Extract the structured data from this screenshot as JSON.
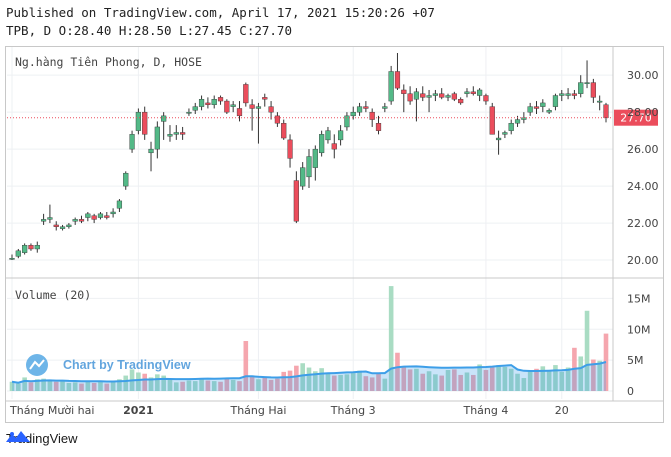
{
  "header": {
    "published": "Published on TradingView.com, April 17, 2021 15:20:26 +07",
    "ohlc": "TPB, D O:28.40 H:28.50 L:27.45 C:27.70"
  },
  "footer": {
    "brand": "TradingView"
  },
  "chart_data": {
    "type": "candlestick",
    "title": "Ng.hàng Tiên Phong, D, HOSE",
    "volume_label": "Volume (20)",
    "watermark": "Chart by TradingView",
    "last_price_label": "27.70",
    "last_price": 27.7,
    "price_ticks": [
      "30.00",
      "28.00",
      "26.00",
      "24.00",
      "22.00",
      "20.00"
    ],
    "price_tick_values": [
      30,
      28,
      26,
      24,
      22,
      20
    ],
    "volume_ticks": [
      "15M",
      "10M",
      "5M",
      "0"
    ],
    "volume_tick_values": [
      15,
      10,
      5,
      0
    ],
    "time_labels": [
      {
        "text": "Tháng Mười hai",
        "index": 0,
        "bold": false
      },
      {
        "text": "2021",
        "index": 20,
        "bold": true
      },
      {
        "text": "Tháng Hai",
        "index": 39,
        "bold": false
      },
      {
        "text": "Tháng 3",
        "index": 54,
        "bold": false
      },
      {
        "text": "Tháng 4",
        "index": 75,
        "bold": false
      },
      {
        "text": "20",
        "index": 87,
        "bold": false
      }
    ],
    "colors": {
      "up": "#53b987",
      "down": "#eb4d5c",
      "up_vol": "#a9dcc3",
      "down_vol": "#f5a6ae",
      "vol_ma": "#3d9ee8",
      "last": "#eb4d5c"
    },
    "ylim": [
      19.3,
      31.2
    ],
    "vlim": [
      0,
      17.5
    ],
    "candles": [
      [
        20.1,
        20.3,
        20.0,
        20.1,
        1.5
      ],
      [
        20.2,
        20.6,
        20.1,
        20.5,
        1.2
      ],
      [
        20.4,
        20.9,
        20.3,
        20.8,
        2.2
      ],
      [
        20.8,
        20.9,
        20.5,
        20.6,
        1.4
      ],
      [
        20.6,
        21.0,
        20.4,
        20.8,
        1.9
      ],
      [
        22.1,
        22.5,
        21.9,
        22.2,
        2.0
      ],
      [
        22.2,
        23.0,
        22.0,
        22.3,
        1.8
      ],
      [
        21.9,
        22.1,
        21.6,
        21.8,
        1.5
      ],
      [
        21.7,
        21.9,
        21.6,
        21.8,
        1.6
      ],
      [
        21.8,
        22.0,
        21.7,
        21.9,
        1.3
      ],
      [
        22.1,
        22.3,
        21.9,
        22.2,
        1.4
      ],
      [
        22.2,
        22.4,
        22.0,
        22.1,
        1.2
      ],
      [
        22.3,
        22.6,
        22.1,
        22.5,
        1.7
      ],
      [
        22.4,
        22.5,
        22.0,
        22.2,
        1.3
      ],
      [
        22.3,
        22.6,
        22.2,
        22.5,
        1.5
      ],
      [
        22.4,
        22.6,
        22.2,
        22.3,
        1.2
      ],
      [
        22.5,
        22.8,
        22.3,
        22.6,
        1.6
      ],
      [
        22.8,
        23.3,
        22.6,
        23.2,
        1.9
      ],
      [
        24.0,
        24.8,
        23.8,
        24.7,
        2.5
      ],
      [
        26.0,
        27.0,
        25.8,
        26.8,
        3.5
      ],
      [
        27.0,
        28.2,
        26.8,
        28.0,
        3.0
      ],
      [
        28.0,
        28.3,
        26.5,
        26.8,
        2.8
      ],
      [
        25.8,
        26.4,
        24.8,
        26.0,
        2.2
      ],
      [
        26.0,
        27.5,
        25.5,
        27.2,
        2.7
      ],
      [
        27.5,
        28.0,
        26.5,
        27.8,
        2.5
      ],
      [
        26.7,
        27.3,
        26.4,
        26.8,
        1.8
      ],
      [
        26.8,
        27.3,
        26.5,
        26.9,
        1.4
      ],
      [
        26.9,
        27.2,
        26.5,
        26.8,
        1.5
      ],
      [
        28.0,
        28.2,
        27.8,
        28.0,
        1.7
      ],
      [
        28.1,
        28.5,
        27.9,
        28.3,
        1.6
      ],
      [
        28.3,
        28.9,
        28.1,
        28.7,
        2.0
      ],
      [
        28.5,
        28.8,
        28.2,
        28.4,
        1.7
      ],
      [
        28.4,
        28.9,
        28.2,
        28.7,
        1.6
      ],
      [
        28.8,
        28.9,
        28.4,
        28.6,
        1.5
      ],
      [
        28.6,
        28.7,
        27.9,
        28.0,
        2.1
      ],
      [
        28.3,
        28.6,
        28.0,
        28.4,
        1.8
      ],
      [
        28.2,
        28.6,
        27.5,
        27.8,
        1.6
      ],
      [
        29.5,
        29.6,
        28.3,
        28.5,
        8.1
      ],
      [
        28.4,
        28.7,
        27.0,
        28.2,
        2.4
      ],
      [
        28.2,
        28.5,
        26.3,
        28.3,
        1.9
      ],
      [
        28.8,
        29.0,
        28.3,
        28.7,
        2.2
      ],
      [
        28.3,
        28.6,
        27.6,
        28.0,
        1.8
      ],
      [
        27.8,
        28.0,
        27.2,
        27.4,
        2.0
      ],
      [
        27.4,
        27.6,
        26.5,
        26.6,
        3.1
      ],
      [
        26.5,
        26.8,
        25.0,
        25.5,
        3.3
      ],
      [
        24.3,
        24.8,
        22.0,
        22.1,
        4.1
      ],
      [
        24.0,
        25.3,
        23.8,
        25.0,
        4.5
      ],
      [
        24.5,
        26.0,
        23.9,
        25.6,
        3.8
      ],
      [
        25.0,
        26.2,
        24.3,
        26.0,
        3.2
      ],
      [
        25.8,
        27.0,
        25.6,
        26.8,
        3.7
      ],
      [
        26.5,
        27.2,
        26.3,
        27.0,
        2.8
      ],
      [
        26.3,
        26.8,
        25.5,
        26.0,
        2.5
      ],
      [
        26.5,
        27.3,
        26.2,
        27.0,
        2.6
      ],
      [
        27.2,
        28.0,
        27.0,
        27.8,
        2.7
      ],
      [
        27.8,
        28.3,
        27.6,
        28.0,
        2.9
      ],
      [
        28.0,
        28.5,
        27.8,
        28.3,
        3.3
      ],
      [
        28.3,
        28.6,
        28.0,
        28.2,
        2.4
      ],
      [
        28.0,
        28.2,
        27.2,
        27.6,
        2.2
      ],
      [
        27.4,
        27.8,
        26.8,
        27.0,
        2.8
      ],
      [
        28.2,
        28.5,
        28.0,
        28.3,
        2.0
      ],
      [
        28.6,
        30.5,
        28.4,
        30.2,
        17.0
      ],
      [
        30.2,
        31.2,
        29.2,
        29.3,
        6.2
      ],
      [
        29.2,
        29.5,
        28.0,
        29.0,
        4.0
      ],
      [
        29.0,
        29.4,
        28.4,
        28.6,
        3.5
      ],
      [
        28.7,
        29.3,
        27.5,
        29.1,
        3.6
      ],
      [
        29.0,
        29.4,
        28.6,
        28.8,
        2.8
      ],
      [
        28.8,
        29.2,
        28.0,
        28.9,
        3.2
      ],
      [
        28.9,
        29.2,
        28.6,
        29.0,
        2.7
      ],
      [
        29.0,
        29.3,
        28.7,
        28.8,
        2.5
      ],
      [
        28.8,
        29.0,
        28.6,
        28.9,
        3.4
      ],
      [
        29.0,
        29.1,
        28.6,
        28.7,
        3.5
      ],
      [
        28.7,
        28.8,
        28.4,
        28.5,
        2.6
      ],
      [
        29.0,
        29.3,
        28.8,
        29.1,
        3.0
      ],
      [
        29.1,
        29.4,
        28.9,
        29.0,
        2.6
      ],
      [
        28.9,
        29.3,
        28.6,
        29.2,
        4.3
      ],
      [
        28.9,
        29.0,
        28.4,
        28.6,
        3.4
      ],
      [
        28.3,
        28.5,
        26.8,
        26.8,
        3.8
      ],
      [
        26.5,
        27.0,
        25.7,
        26.6,
        4.2
      ],
      [
        26.8,
        27.0,
        26.6,
        26.9,
        3.9
      ],
      [
        27.0,
        27.6,
        26.8,
        27.4,
        3.6
      ],
      [
        27.4,
        27.8,
        27.2,
        27.6,
        2.8
      ],
      [
        27.6,
        28.0,
        27.4,
        27.7,
        2.1
      ],
      [
        28.0,
        28.5,
        27.8,
        28.3,
        3.2
      ],
      [
        28.3,
        28.6,
        27.9,
        28.2,
        3.6
      ],
      [
        28.3,
        28.7,
        28.0,
        28.5,
        4.0
      ],
      [
        28.0,
        28.2,
        27.9,
        28.1,
        3.3
      ],
      [
        28.3,
        29.0,
        28.1,
        28.9,
        4.2
      ],
      [
        28.9,
        29.2,
        28.6,
        29.0,
        3.1
      ],
      [
        28.9,
        29.3,
        28.7,
        29.0,
        3.8
      ],
      [
        29.0,
        29.2,
        28.7,
        28.9,
        7.0
      ],
      [
        29.0,
        30.0,
        28.8,
        29.6,
        5.6
      ],
      [
        29.6,
        30.8,
        29.3,
        29.6,
        13.0
      ],
      [
        29.6,
        29.8,
        28.5,
        28.8,
        5.1
      ],
      [
        28.6,
        28.9,
        28.1,
        28.6,
        4.9
      ],
      [
        28.4,
        28.5,
        27.45,
        27.7,
        9.3
      ]
    ]
  }
}
